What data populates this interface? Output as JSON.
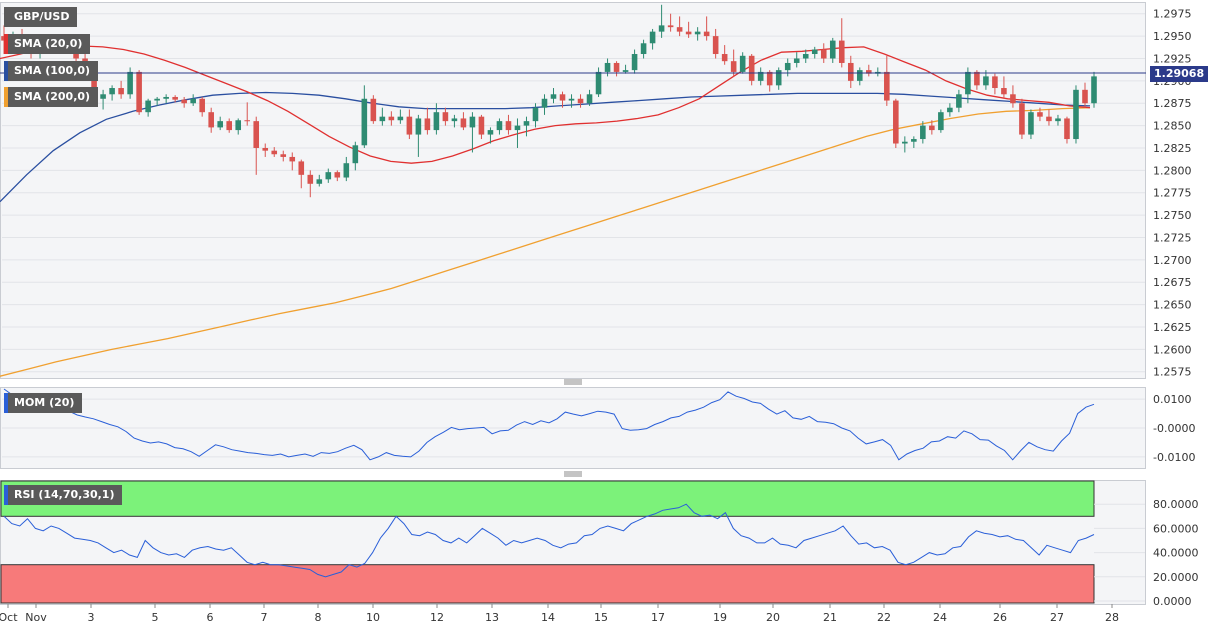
{
  "chart_data": {
    "type": "candlestick",
    "symbol": "GBP/USD",
    "last_price": "1.29068",
    "x_tick_labels": [
      "Oct",
      "Nov",
      "3",
      "5",
      "6",
      "7",
      "8",
      "10",
      "12",
      "13",
      "14",
      "15",
      "17",
      "19",
      "20",
      "21",
      "22",
      "24",
      "26",
      "27",
      "28"
    ],
    "price_axis": {
      "ticks": [
        "1.2975",
        "1.2950",
        "1.2925",
        "1.2900",
        "1.2875",
        "1.2850",
        "1.2825",
        "1.2800",
        "1.2775",
        "1.2750",
        "1.2725",
        "1.2700",
        "1.2675",
        "1.2650",
        "1.2625",
        "1.2600",
        "1.2575"
      ],
      "ylim": [
        1.2568,
        1.2987
      ]
    },
    "colors": {
      "up": "#2e8b72",
      "down": "#d9534f",
      "sma20": "#e03030",
      "sma100": "#2a4fa0",
      "sma200": "#f0a030",
      "mom": "#2a5fd8",
      "rsi": "#2a5fd8",
      "overbought": "#7cf27a",
      "oversold": "#f77a7a",
      "price_tag": "#2b3a8a"
    },
    "indicators": [
      {
        "label": "SMA (20,0)",
        "color": "#e03030"
      },
      {
        "label": "SMA (100,0)",
        "color": "#2a4fa0"
      },
      {
        "label": "SMA (200,0)",
        "color": "#f0a030"
      }
    ],
    "candles": [
      [
        1.295,
        1.2962,
        1.293,
        1.2945
      ],
      [
        1.2945,
        1.2955,
        1.2935,
        1.295
      ],
      [
        1.295,
        1.2958,
        1.2935,
        1.294
      ],
      [
        1.294,
        1.2952,
        1.2925,
        1.293
      ],
      [
        1.293,
        1.2945,
        1.2925,
        1.294
      ],
      [
        1.294,
        1.2945,
        1.2935,
        1.2942
      ],
      [
        1.2942,
        1.2944,
        1.2932,
        1.2935
      ],
      [
        1.2935,
        1.2945,
        1.293,
        1.294
      ],
      [
        1.294,
        1.2942,
        1.292,
        1.2925
      ],
      [
        1.2925,
        1.293,
        1.2905,
        1.291
      ],
      [
        1.291,
        1.2912,
        1.2872,
        1.288
      ],
      [
        1.288,
        1.289,
        1.2868,
        1.2885
      ],
      [
        1.2885,
        1.2895,
        1.2878,
        1.2892
      ],
      [
        1.2892,
        1.29,
        1.288,
        1.2885
      ],
      [
        1.2885,
        1.2915,
        1.288,
        1.291
      ],
      [
        1.291,
        1.2912,
        1.2862,
        1.2865
      ],
      [
        1.2865,
        1.288,
        1.286,
        1.2878
      ],
      [
        1.2878,
        1.2882,
        1.2872,
        1.288
      ],
      [
        1.288,
        1.2885,
        1.2875,
        1.2882
      ],
      [
        1.2882,
        1.2884,
        1.2876,
        1.2879
      ],
      [
        1.2879,
        1.2882,
        1.287,
        1.2875
      ],
      [
        1.2875,
        1.2885,
        1.2872,
        1.288
      ],
      [
        1.288,
        1.2882,
        1.286,
        1.2865
      ],
      [
        1.2865,
        1.287,
        1.2842,
        1.2848
      ],
      [
        1.2848,
        1.286,
        1.2845,
        1.2855
      ],
      [
        1.2855,
        1.2858,
        1.2842,
        1.2845
      ],
      [
        1.2845,
        1.2858,
        1.284,
        1.2856
      ],
      [
        1.2856,
        1.2876,
        1.285,
        1.2855
      ],
      [
        1.2855,
        1.286,
        1.2795,
        1.2825
      ],
      [
        1.2825,
        1.283,
        1.2815,
        1.2822
      ],
      [
        1.2822,
        1.2826,
        1.2815,
        1.2818
      ],
      [
        1.2818,
        1.2822,
        1.281,
        1.2815
      ],
      [
        1.2815,
        1.282,
        1.28,
        1.281
      ],
      [
        1.281,
        1.2812,
        1.278,
        1.2795
      ],
      [
        1.2795,
        1.28,
        1.277,
        1.2785
      ],
      [
        1.2785,
        1.2795,
        1.2782,
        1.279
      ],
      [
        1.279,
        1.2802,
        1.2786,
        1.2798
      ],
      [
        1.2798,
        1.28,
        1.2788,
        1.2792
      ],
      [
        1.2792,
        1.2815,
        1.2788,
        1.2808
      ],
      [
        1.2808,
        1.2832,
        1.28,
        1.2828
      ],
      [
        1.2828,
        1.2895,
        1.2825,
        1.288
      ],
      [
        1.288,
        1.2884,
        1.2852,
        1.2855
      ],
      [
        1.2855,
        1.287,
        1.285,
        1.286
      ],
      [
        1.286,
        1.2866,
        1.285,
        1.2856
      ],
      [
        1.2856,
        1.2868,
        1.2852,
        1.286
      ],
      [
        1.286,
        1.2868,
        1.2835,
        1.284
      ],
      [
        1.284,
        1.2862,
        1.2815,
        1.2858
      ],
      [
        1.2858,
        1.287,
        1.284,
        1.2845
      ],
      [
        1.2845,
        1.2875,
        1.284,
        1.2865
      ],
      [
        1.2865,
        1.287,
        1.285,
        1.2855
      ],
      [
        1.2855,
        1.2862,
        1.2848,
        1.2858
      ],
      [
        1.2858,
        1.2865,
        1.2845,
        1.2848
      ],
      [
        1.2848,
        1.2865,
        1.282,
        1.286
      ],
      [
        1.286,
        1.2862,
        1.2835,
        1.284
      ],
      [
        1.284,
        1.2848,
        1.283,
        1.2845
      ],
      [
        1.2845,
        1.2858,
        1.284,
        1.2855
      ],
      [
        1.2855,
        1.2862,
        1.284,
        1.2845
      ],
      [
        1.2845,
        1.2858,
        1.2825,
        1.285
      ],
      [
        1.285,
        1.286,
        1.2838,
        1.2855
      ],
      [
        1.2855,
        1.2875,
        1.2848,
        1.287
      ],
      [
        1.287,
        1.2885,
        1.2862,
        1.288
      ],
      [
        1.288,
        1.2892,
        1.2875,
        1.2885
      ],
      [
        1.2885,
        1.2888,
        1.287,
        1.2878
      ],
      [
        1.2878,
        1.2885,
        1.287,
        1.288
      ],
      [
        1.288,
        1.2885,
        1.287,
        1.2875
      ],
      [
        1.2875,
        1.289,
        1.2872,
        1.2885
      ],
      [
        1.2885,
        1.2915,
        1.2882,
        1.291
      ],
      [
        1.291,
        1.2925,
        1.2905,
        1.292
      ],
      [
        1.292,
        1.2922,
        1.2905,
        1.291
      ],
      [
        1.291,
        1.2918,
        1.2908,
        1.2912
      ],
      [
        1.2912,
        1.2935,
        1.2908,
        1.293
      ],
      [
        1.293,
        1.2946,
        1.2925,
        1.2942
      ],
      [
        1.2942,
        1.2958,
        1.2935,
        1.2955
      ],
      [
        1.2955,
        1.2985,
        1.2948,
        1.2962
      ],
      [
        1.2962,
        1.2975,
        1.2955,
        1.296
      ],
      [
        1.296,
        1.2972,
        1.295,
        1.2955
      ],
      [
        1.2955,
        1.2966,
        1.2948,
        1.2952
      ],
      [
        1.2952,
        1.296,
        1.2945,
        1.2955
      ],
      [
        1.2955,
        1.2972,
        1.2945,
        1.295
      ],
      [
        1.295,
        1.2958,
        1.2925,
        1.293
      ],
      [
        1.293,
        1.294,
        1.2918,
        1.2922
      ],
      [
        1.2922,
        1.2935,
        1.2905,
        1.291
      ],
      [
        1.291,
        1.2932,
        1.2908,
        1.2928
      ],
      [
        1.2928,
        1.293,
        1.2895,
        1.29
      ],
      [
        1.29,
        1.2915,
        1.2895,
        1.291
      ],
      [
        1.291,
        1.2912,
        1.2888,
        1.2895
      ],
      [
        1.2895,
        1.2915,
        1.289,
        1.2912
      ],
      [
        1.2912,
        1.2925,
        1.2905,
        1.292
      ],
      [
        1.292,
        1.2932,
        1.2915,
        1.2925
      ],
      [
        1.2925,
        1.2935,
        1.292,
        1.293
      ],
      [
        1.293,
        1.2938,
        1.2925,
        1.2935
      ],
      [
        1.2935,
        1.2942,
        1.292,
        1.2925
      ],
      [
        1.2925,
        1.2948,
        1.292,
        1.2945
      ],
      [
        1.2945,
        1.297,
        1.2915,
        1.292
      ],
      [
        1.292,
        1.2928,
        1.2892,
        1.29
      ],
      [
        1.29,
        1.2915,
        1.2895,
        1.2912
      ],
      [
        1.2912,
        1.2918,
        1.2905,
        1.2908
      ],
      [
        1.2908,
        1.2915,
        1.2905,
        1.291
      ],
      [
        1.291,
        1.2928,
        1.2872,
        1.2878
      ],
      [
        1.2878,
        1.288,
        1.2825,
        1.283
      ],
      [
        1.283,
        1.2838,
        1.282,
        1.2832
      ],
      [
        1.2832,
        1.2838,
        1.2825,
        1.2835
      ],
      [
        1.2835,
        1.2855,
        1.283,
        1.285
      ],
      [
        1.285,
        1.2856,
        1.284,
        1.2845
      ],
      [
        1.2845,
        1.2868,
        1.2842,
        1.2865
      ],
      [
        1.2865,
        1.2875,
        1.286,
        1.287
      ],
      [
        1.287,
        1.289,
        1.2865,
        1.2885
      ],
      [
        1.2885,
        1.2915,
        1.2875,
        1.291
      ],
      [
        1.291,
        1.2912,
        1.289,
        1.2895
      ],
      [
        1.2895,
        1.2912,
        1.289,
        1.2905
      ],
      [
        1.2905,
        1.2908,
        1.2885,
        1.2892
      ],
      [
        1.2892,
        1.2905,
        1.288,
        1.2885
      ],
      [
        1.2885,
        1.2895,
        1.287,
        1.2875
      ],
      [
        1.2875,
        1.288,
        1.2835,
        1.284
      ],
      [
        1.284,
        1.2868,
        1.2835,
        1.2865
      ],
      [
        1.2865,
        1.287,
        1.2855,
        1.286
      ],
      [
        1.286,
        1.2868,
        1.285,
        1.2855
      ],
      [
        1.2855,
        1.2862,
        1.285,
        1.2858
      ],
      [
        1.2858,
        1.286,
        1.283,
        1.2835
      ],
      [
        1.2835,
        1.2895,
        1.283,
        1.289
      ],
      [
        1.289,
        1.2898,
        1.287,
        1.2875
      ],
      [
        1.2875,
        1.291,
        1.287,
        1.2905
      ]
    ],
    "sma20": [
      1.2925,
      1.293,
      1.2936,
      1.2938,
      1.2939,
      1.2938,
      1.2935,
      1.293,
      1.2923,
      1.2915,
      1.2906,
      1.2897,
      1.2888,
      1.2878,
      1.2866,
      1.2852,
      1.2838,
      1.2826,
      1.2816,
      1.281,
      1.2808,
      1.281,
      1.2816,
      1.2824,
      1.2833,
      1.284,
      1.2846,
      1.285,
      1.2852,
      1.2853,
      1.2855,
      1.2858,
      1.2862,
      1.287,
      1.288,
      1.2895,
      1.291,
      1.2923,
      1.2932,
      1.2933,
      1.2935,
      1.2937,
      1.2938,
      1.293,
      1.2921,
      1.2912,
      1.29,
      1.2891,
      1.2884,
      1.288,
      1.2878,
      1.2876,
      1.2872,
      1.287
    ],
    "sma100": [
      1.2765,
      1.2795,
      1.2822,
      1.2842,
      1.2857,
      1.2866,
      1.2873,
      1.2879,
      1.2884,
      1.2886,
      1.2887,
      1.2886,
      1.2884,
      1.288,
      1.2875,
      1.2871,
      1.2869,
      1.2869,
      1.2869,
      1.2869,
      1.287,
      1.2872,
      1.2874,
      1.2876,
      1.2878,
      1.288,
      1.2882,
      1.2883,
      1.2884,
      1.2885,
      1.2886,
      1.2886,
      1.2886,
      1.2886,
      1.2885,
      1.2883,
      1.2881,
      1.2879,
      1.2877,
      1.2875,
      1.2873,
      1.2872
    ],
    "sma200": [
      1.257,
      1.2578,
      1.2586,
      1.2593,
      1.26,
      1.2606,
      1.2612,
      1.2619,
      1.2626,
      1.2633,
      1.264,
      1.2646,
      1.2652,
      1.266,
      1.2668,
      1.2678,
      1.2688,
      1.2698,
      1.2708,
      1.2718,
      1.2728,
      1.2738,
      1.2748,
      1.2758,
      1.2768,
      1.2778,
      1.2788,
      1.2798,
      1.2808,
      1.2818,
      1.2828,
      1.2838,
      1.2846,
      1.2852,
      1.2858,
      1.2863,
      1.2866,
      1.2867,
      1.2869,
      1.287
    ],
    "mom": {
      "label": "MOM (20)",
      "ticks": [
        "0.0100",
        "-0.0000",
        "-0.0100"
      ],
      "ylim": [
        -0.0135,
        0.0135
      ],
      "values": [
        0.0135,
        0.0115,
        0.0102,
        0.0095,
        0.0092,
        0.009,
        0.0085,
        0.0078,
        0.0058,
        0.0045,
        0.0038,
        0.0032,
        0.0022,
        0.0012,
        0.0004,
        -0.0012,
        -0.0035,
        -0.0045,
        -0.0052,
        -0.0048,
        -0.0055,
        -0.0068,
        -0.0072,
        -0.0082,
        -0.0098,
        -0.0078,
        -0.0058,
        -0.0065,
        -0.0075,
        -0.008,
        -0.0085,
        -0.0088,
        -0.0092,
        -0.0095,
        -0.009,
        -0.01,
        -0.0095,
        -0.009,
        -0.0098,
        -0.0085,
        -0.0088,
        -0.0082,
        -0.007,
        -0.006,
        -0.0075,
        -0.011,
        -0.01,
        -0.0085,
        -0.0095,
        -0.0098,
        -0.01,
        -0.008,
        -0.005,
        -0.003,
        -0.0015,
        0.0002,
        -0.0006,
        -0.0002,
        0.0,
        0.0002,
        -0.002,
        -0.001,
        -0.0008,
        0.001,
        0.0022,
        0.0012,
        0.0025,
        0.0018,
        0.0032,
        0.0055,
        0.0048,
        0.0042,
        0.005,
        0.0058,
        0.0055,
        0.0048,
        -0.0002,
        -0.0008,
        -0.0006,
        -0.0002,
        0.0012,
        0.0022,
        0.0035,
        0.004,
        0.0055,
        0.0062,
        0.0072,
        0.0088,
        0.0098,
        0.0125,
        0.011,
        0.0102,
        0.009,
        0.0085,
        0.0065,
        0.0048,
        0.006,
        0.0035,
        0.003,
        0.004,
        0.0022,
        0.002,
        0.0015,
        0.0,
        -0.001,
        -0.0035,
        -0.0055,
        -0.0048,
        -0.004,
        -0.006,
        -0.011,
        -0.009,
        -0.0078,
        -0.007,
        -0.0048,
        -0.0045,
        -0.003,
        -0.0035,
        -0.001,
        -0.002,
        -0.004,
        -0.0042,
        -0.0062,
        -0.0078,
        -0.011,
        -0.0078,
        -0.005,
        -0.0065,
        -0.0075,
        -0.008,
        -0.0045,
        -0.0018,
        0.005,
        0.0072,
        0.0082
      ]
    },
    "rsi": {
      "label": "RSI (14,70,30,1)",
      "ticks": [
        "80.0000",
        "60.0000",
        "40.0000",
        "20.0000",
        "0.0000"
      ],
      "ylim": [
        0,
        100
      ],
      "overbought": 70,
      "oversold": 30,
      "values": [
        70,
        64,
        62,
        68,
        60,
        58,
        62,
        60,
        56,
        52,
        51,
        50,
        48,
        44,
        40,
        42,
        38,
        36,
        50,
        44,
        40,
        38,
        39,
        36,
        42,
        44,
        45,
        43,
        42,
        44,
        38,
        32,
        30,
        32,
        30,
        30,
        29,
        28,
        27,
        26,
        22,
        20,
        22,
        24,
        30,
        28,
        31,
        40,
        52,
        60,
        70,
        64,
        55,
        54,
        57,
        55,
        50,
        48,
        52,
        48,
        54,
        60,
        56,
        52,
        46,
        50,
        48,
        50,
        52,
        50,
        46,
        44,
        47,
        48,
        54,
        55,
        60,
        62,
        60,
        58,
        64,
        67,
        70,
        72,
        75,
        76,
        77,
        80,
        73,
        70,
        71,
        68,
        73,
        60,
        54,
        52,
        48,
        48,
        52,
        47,
        46,
        44,
        50,
        52,
        54,
        56,
        58,
        62,
        54,
        47,
        48,
        44,
        45,
        42,
        32,
        30,
        32,
        36,
        40,
        38,
        39,
        44,
        45,
        53,
        58,
        56,
        55,
        53,
        54,
        51,
        50,
        44,
        38,
        46,
        44,
        42,
        40,
        50,
        52,
        55
      ]
    }
  }
}
